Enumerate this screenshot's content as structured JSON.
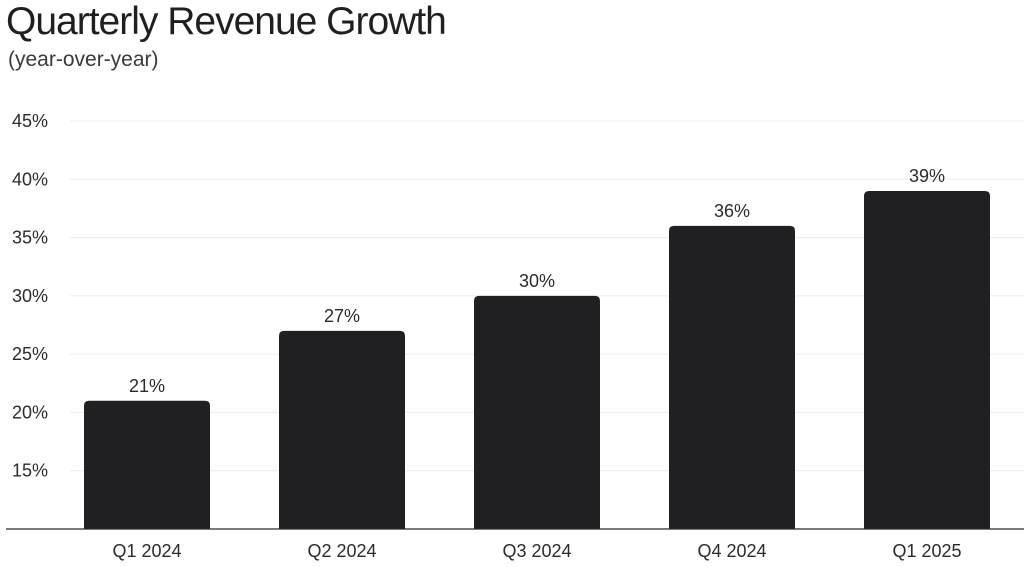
{
  "chart_data": {
    "type": "bar",
    "title": "Quarterly Revenue Growth",
    "subtitle": "(year-over-year)",
    "categories": [
      "Q1 2024",
      "Q2 2024",
      "Q3 2024",
      "Q4 2024",
      "Q1 2025"
    ],
    "values": [
      21,
      27,
      30,
      36,
      39
    ],
    "value_labels": [
      "21%",
      "27%",
      "30%",
      "36%",
      "39%"
    ],
    "ylim": [
      10,
      45
    ],
    "yticks": [
      15,
      20,
      25,
      30,
      35,
      40,
      45
    ],
    "ytick_labels": [
      "15%",
      "20%",
      "25%",
      "30%",
      "35%",
      "40%",
      "45%"
    ],
    "grid": true,
    "legend": "none",
    "bar_color": "#202023",
    "grid_color": "#ececec",
    "axis_color": "#2b2b2e"
  }
}
